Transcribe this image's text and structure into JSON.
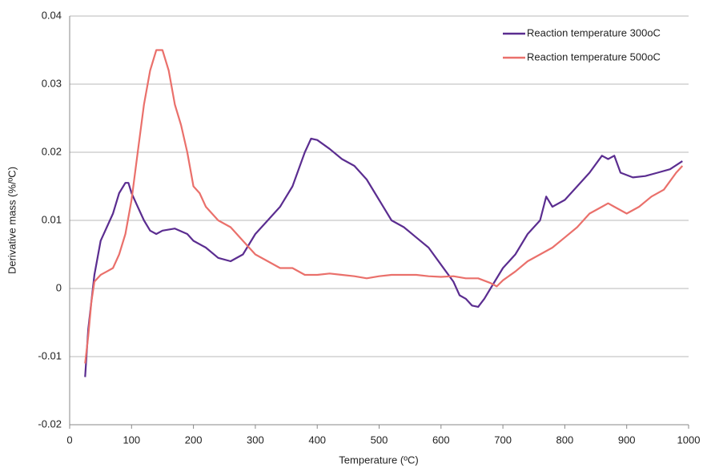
{
  "chart_data": {
    "type": "line",
    "xlabel": "Temperature (ºC)",
    "ylabel": "Derivative mass (%/ºC)",
    "xlim": [
      0,
      1000
    ],
    "xticks": [
      0,
      100,
      200,
      300,
      400,
      500,
      600,
      700,
      800,
      900,
      1000
    ],
    "ylim": [
      -0.02,
      0.04
    ],
    "yticks": [
      -0.02,
      -0.01,
      0,
      0.01,
      0.02,
      0.03,
      0.04
    ],
    "grid": true,
    "legend": "upper right",
    "series": [
      {
        "name": "Reaction temperature 300oC",
        "color": "#5b2d90",
        "x": [
          25,
          30,
          40,
          50,
          60,
          70,
          80,
          90,
          95,
          100,
          110,
          120,
          130,
          140,
          150,
          170,
          190,
          200,
          220,
          240,
          260,
          280,
          300,
          320,
          340,
          360,
          380,
          390,
          400,
          420,
          440,
          460,
          480,
          500,
          520,
          540,
          560,
          580,
          600,
          620,
          630,
          640,
          650,
          660,
          670,
          680,
          700,
          720,
          740,
          760,
          770,
          780,
          800,
          820,
          840,
          860,
          870,
          880,
          890,
          910,
          930,
          950,
          970,
          990
        ],
        "values": [
          -0.013,
          -0.006,
          0.002,
          0.007,
          0.009,
          0.011,
          0.014,
          0.0155,
          0.0155,
          0.014,
          0.012,
          0.01,
          0.0085,
          0.008,
          0.0085,
          0.0088,
          0.008,
          0.007,
          0.006,
          0.0045,
          0.004,
          0.005,
          0.008,
          0.01,
          0.012,
          0.015,
          0.02,
          0.022,
          0.0218,
          0.0205,
          0.019,
          0.018,
          0.016,
          0.013,
          0.01,
          0.009,
          0.0075,
          0.006,
          0.0035,
          0.001,
          -0.001,
          -0.0015,
          -0.0025,
          -0.0027,
          -0.0015,
          0,
          0.003,
          0.005,
          0.008,
          0.01,
          0.0135,
          0.012,
          0.013,
          0.015,
          0.017,
          0.0195,
          0.019,
          0.0195,
          0.017,
          0.0163,
          0.0165,
          0.017,
          0.0175,
          0.0187
        ]
      },
      {
        "name": "Reaction temperature 500oC",
        "color": "#ea706b",
        "x": [
          25,
          30,
          35,
          40,
          50,
          60,
          70,
          80,
          90,
          100,
          110,
          120,
          130,
          140,
          150,
          160,
          170,
          180,
          190,
          200,
          210,
          220,
          240,
          260,
          280,
          300,
          320,
          340,
          360,
          380,
          400,
          420,
          440,
          460,
          480,
          500,
          520,
          540,
          560,
          580,
          600,
          620,
          640,
          660,
          680,
          690,
          700,
          720,
          740,
          760,
          780,
          800,
          820,
          840,
          860,
          870,
          880,
          900,
          920,
          940,
          960,
          980,
          990
        ],
        "values": [
          -0.011,
          -0.007,
          -0.002,
          0.001,
          0.002,
          0.0025,
          0.003,
          0.005,
          0.008,
          0.013,
          0.02,
          0.027,
          0.032,
          0.035,
          0.035,
          0.032,
          0.027,
          0.024,
          0.02,
          0.015,
          0.014,
          0.012,
          0.01,
          0.009,
          0.007,
          0.005,
          0.004,
          0.003,
          0.003,
          0.002,
          0.002,
          0.0022,
          0.002,
          0.0018,
          0.0015,
          0.0018,
          0.002,
          0.002,
          0.002,
          0.0018,
          0.0017,
          0.0018,
          0.0015,
          0.0015,
          0.0008,
          0.0003,
          0.0012,
          0.0025,
          0.004,
          0.005,
          0.006,
          0.0075,
          0.009,
          0.011,
          0.012,
          0.0125,
          0.012,
          0.011,
          0.012,
          0.0135,
          0.0145,
          0.017,
          0.018
        ]
      }
    ]
  }
}
